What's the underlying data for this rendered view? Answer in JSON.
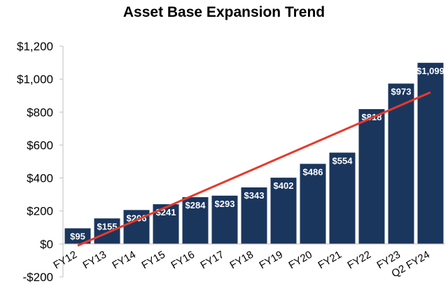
{
  "chart_data": {
    "type": "bar",
    "title": "Asset Base Expansion Trend",
    "categories": [
      "FY12",
      "FY13",
      "FY14",
      "FY15",
      "FY16",
      "FY17",
      "FY18",
      "FY19",
      "FY20",
      "FY21",
      "FY22",
      "FY23",
      "Q2 FY24"
    ],
    "values": [
      95,
      155,
      206,
      241,
      284,
      293,
      343,
      402,
      486,
      554,
      818,
      973,
      1099
    ],
    "data_labels": [
      "$95",
      "$155",
      "$206",
      "$241",
      "$284",
      "$293",
      "$343",
      "$402",
      "$486",
      "$554",
      "$818",
      "$973",
      "$1,099"
    ],
    "ylim": [
      -200,
      1200
    ],
    "yticks": [
      -200,
      0,
      200,
      400,
      600,
      800,
      1000,
      1200
    ],
    "ytick_labels": [
      "-$200",
      "$0",
      "$200",
      "$400",
      "$600",
      "$800",
      "$1,000",
      "$1,200"
    ],
    "xlabel": "",
    "ylabel": "",
    "grid": false,
    "trendline": {
      "start": -10,
      "end": 920
    },
    "colors": {
      "bar": "#1b365d",
      "trendline": "#e8392b",
      "axis": "#bfbfbf"
    }
  }
}
